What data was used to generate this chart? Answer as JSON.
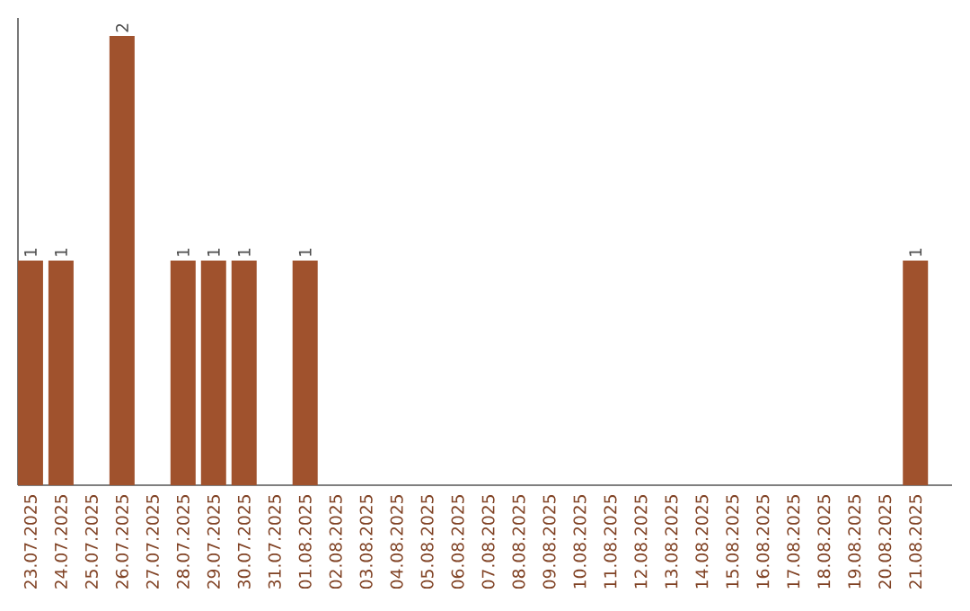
{
  "chart_data": {
    "type": "bar",
    "categories": [
      "23.07.2025",
      "24.07.2025",
      "25.07.2025",
      "26.07.2025",
      "27.07.2025",
      "28.07.2025",
      "29.07.2025",
      "30.07.2025",
      "31.07.2025",
      "01.08.2025",
      "02.08.2025",
      "03.08.2025",
      "04.08.2025",
      "05.08.2025",
      "06.08.2025",
      "07.08.2025",
      "08.08.2025",
      "09.08.2025",
      "10.08.2025",
      "11.08.2025",
      "12.08.2025",
      "13.08.2025",
      "14.08.2025",
      "15.08.2025",
      "16.08.2025",
      "17.08.2025",
      "18.08.2025",
      "19.08.2025",
      "20.08.2025",
      "21.08.2025"
    ],
    "values": [
      1,
      1,
      0,
      2,
      0,
      1,
      1,
      1,
      0,
      1,
      0,
      0,
      0,
      0,
      0,
      0,
      0,
      0,
      0,
      0,
      0,
      0,
      0,
      0,
      0,
      0,
      0,
      0,
      0,
      1
    ],
    "value_labels": [
      "1",
      "1",
      null,
      "2",
      null,
      "1",
      "1",
      "1",
      null,
      "1",
      null,
      null,
      null,
      null,
      null,
      null,
      null,
      null,
      null,
      null,
      null,
      null,
      null,
      null,
      null,
      null,
      null,
      null,
      null,
      "1"
    ],
    "color": "#a0522d"
  }
}
